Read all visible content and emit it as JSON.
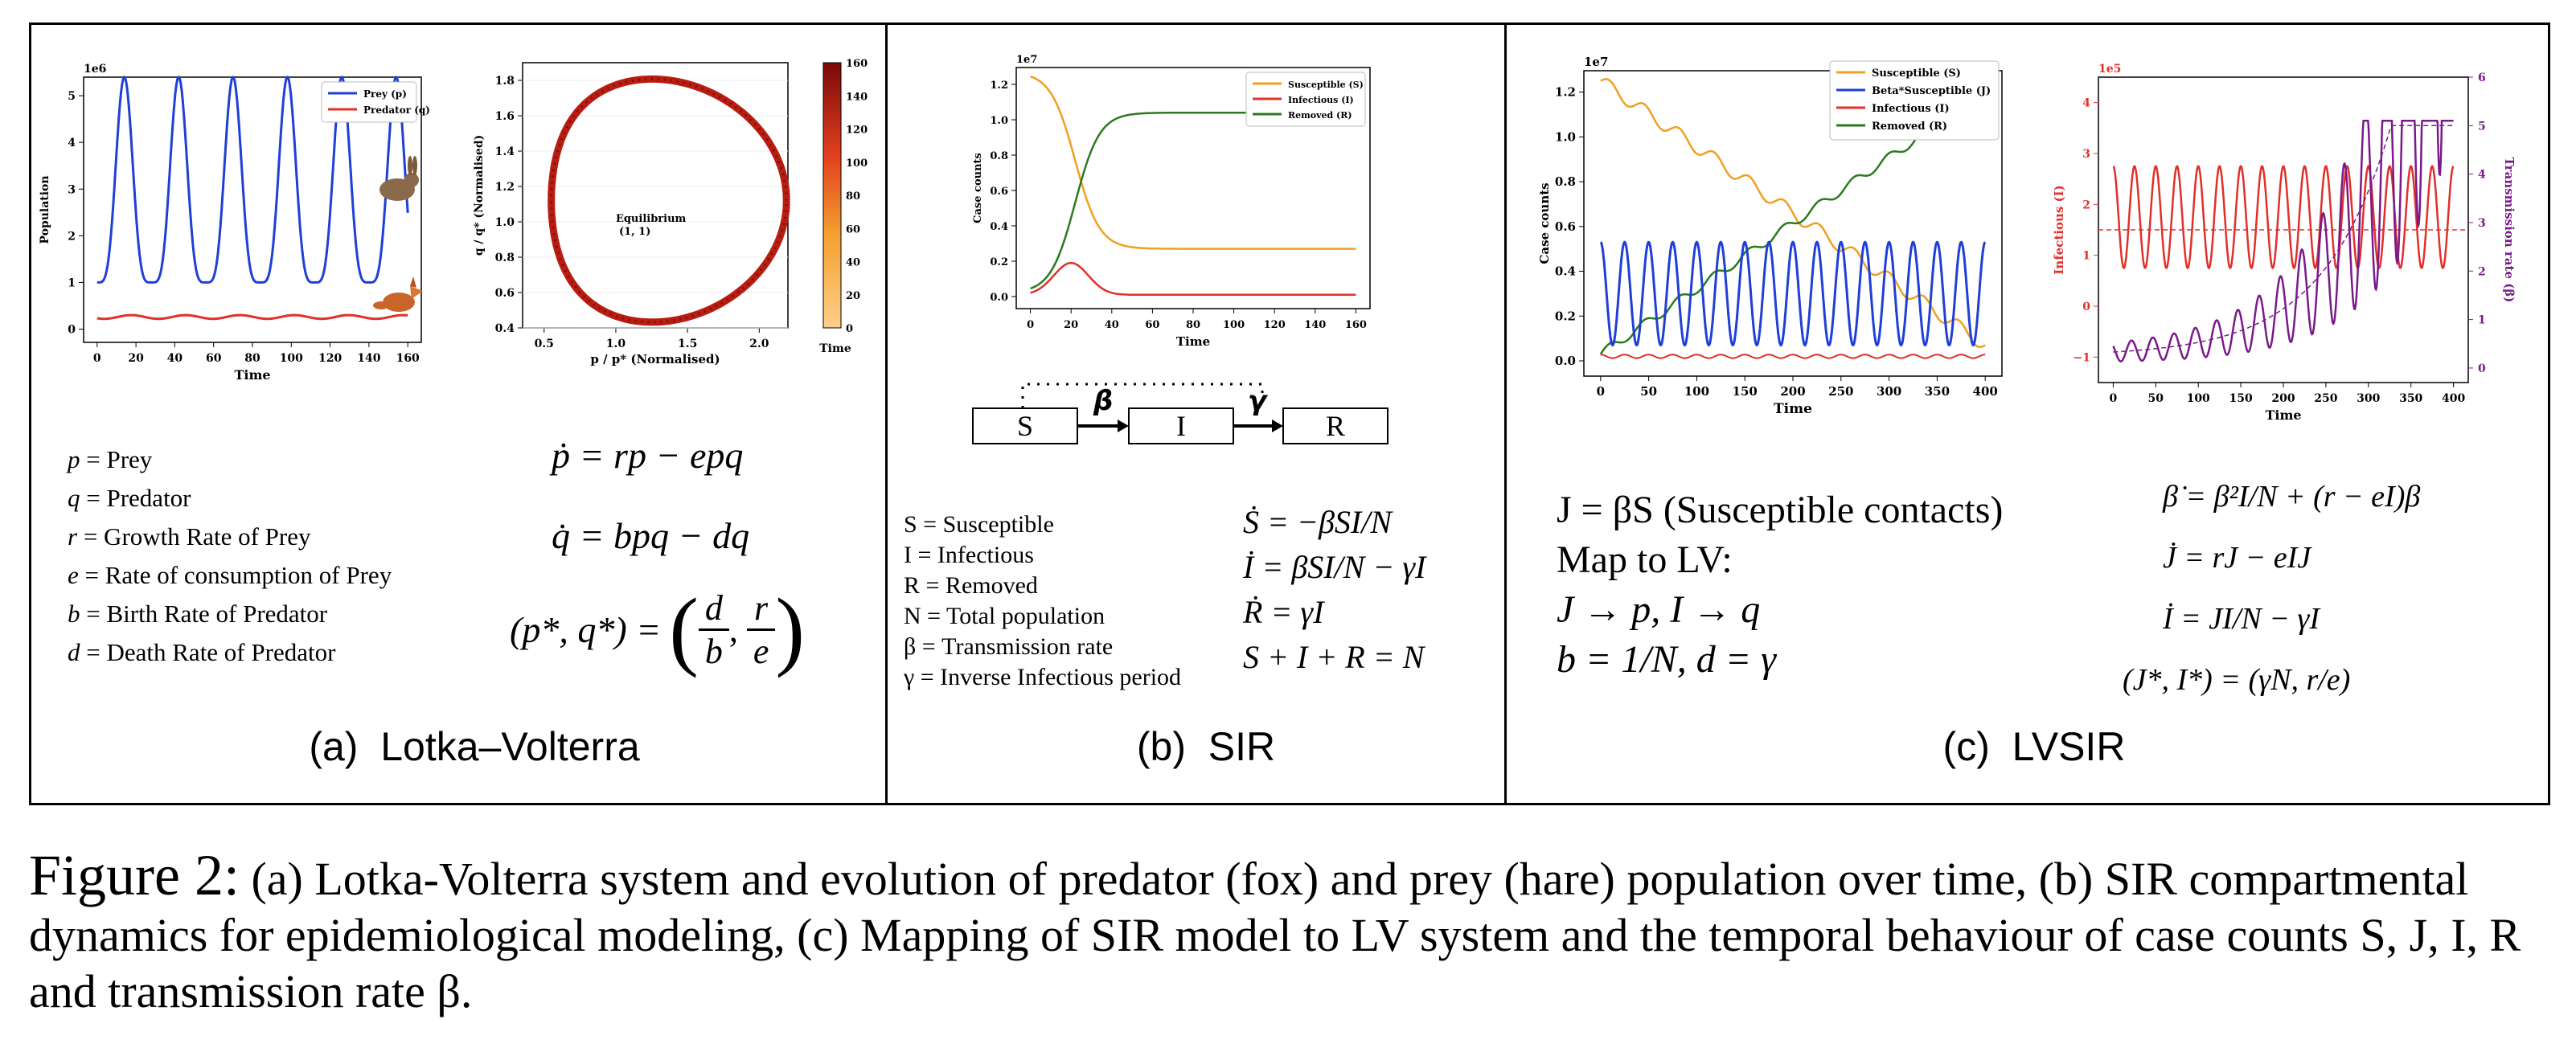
{
  "panels": {
    "a": {
      "label": "(a)  Lotka–Volterra",
      "plot1": {
        "scale": "1e6",
        "xlabel": "Time",
        "ylabel": "Population",
        "xticks": [
          "0",
          "20",
          "40",
          "60",
          "80",
          "100",
          "120",
          "140",
          "160"
        ],
        "yticks": [
          "0",
          "1",
          "2",
          "3",
          "4",
          "5"
        ],
        "legend": [
          "Prey (p)",
          "Predator (q)"
        ],
        "colors": {
          "prey": "#1f3fd6",
          "predator": "#e0302a"
        }
      },
      "plot2": {
        "xlabel": "p / p* (Normalised)",
        "ylabel": "q / q* (Normalised)",
        "xticks": [
          "0.5",
          "1.0",
          "1.5",
          "2.0"
        ],
        "yticks": [
          "0.4",
          "0.6",
          "0.8",
          "1.0",
          "1.2",
          "1.4",
          "1.6",
          "1.8"
        ],
        "annotation": [
          "Equilibrium",
          "(1, 1)"
        ],
        "colorbar_label": "Time",
        "colorbar_ticks": [
          "0",
          "20",
          "40",
          "60",
          "80",
          "100",
          "120",
          "140",
          "160"
        ]
      },
      "defs": [
        {
          "sym": "p",
          "text": " = Prey"
        },
        {
          "sym": "q",
          "text": " = Predator"
        },
        {
          "sym": "r",
          "text": " = Growth Rate of Prey"
        },
        {
          "sym": "e",
          "text": " = Rate of consumption of Prey"
        },
        {
          "sym": "b",
          "text": " = Birth Rate of Predator"
        },
        {
          "sym": "d",
          "text": " = Death Rate of Predator"
        }
      ],
      "eqs": [
        "ṗ = rp − epq",
        "q̇ = bpq − dq"
      ],
      "eq_fixed_left": "(p*, q*) =",
      "eq_fixed_frac1": [
        "d",
        "b"
      ],
      "eq_fixed_frac2": [
        "r",
        "e"
      ]
    },
    "b": {
      "label": "(b)  SIR",
      "plot": {
        "scale": "1e7",
        "xlabel": "Time",
        "ylabel": "Case counts",
        "xticks": [
          "0",
          "20",
          "40",
          "60",
          "80",
          "100",
          "120",
          "140",
          "160"
        ],
        "yticks": [
          "0.0",
          "0.2",
          "0.4",
          "0.6",
          "0.8",
          "1.0",
          "1.2"
        ],
        "legend": [
          "Susceptible (S)",
          "Infectious (I)",
          "Removed (R)"
        ],
        "colors": {
          "S": "#f0a020",
          "I": "#e0302a",
          "R": "#2b7a1e"
        }
      },
      "diagram": {
        "S": "S",
        "I": "I",
        "R": "R",
        "beta": "β",
        "gamma": "γ"
      },
      "defs": [
        "S = Susceptible",
        "I = Infectious",
        "R = Removed",
        "N = Total population",
        "β = Transmission rate",
        "γ = Inverse Infectious period"
      ],
      "eqs": [
        "Ṡ = −βSI/N",
        "İ = βSI/N − γI",
        "Ṙ = γI",
        "S + I + R = N"
      ]
    },
    "c": {
      "label": "(c)  LVSIR",
      "plot1": {
        "scale": "1e7",
        "xlabel": "Time",
        "ylabel": "Case counts",
        "xticks": [
          "0",
          "50",
          "100",
          "150",
          "200",
          "250",
          "300",
          "350",
          "400"
        ],
        "yticks": [
          "0.0",
          "0.2",
          "0.4",
          "0.6",
          "0.8",
          "1.0",
          "1.2"
        ],
        "legend": [
          "Susceptible (S)",
          "Beta*Susceptible (J)",
          "Infectious (I)",
          "Removed (R)"
        ],
        "colors": {
          "S": "#f0a020",
          "J": "#1f3fd6",
          "I": "#e0302a",
          "R": "#2b7a1e"
        }
      },
      "plot2": {
        "scale": "1e5",
        "xlabel": "Time",
        "ylabel_left": "Infectious (I)",
        "ylabel_right": "Transmission rate (β)",
        "xticks": [
          "0",
          "50",
          "100",
          "150",
          "200",
          "250",
          "300",
          "350",
          "400"
        ],
        "yticks_left": [
          "−1",
          "0",
          "1",
          "2",
          "3",
          "4"
        ],
        "yticks_right": [
          "0",
          "1",
          "2",
          "3",
          "4",
          "5",
          "6"
        ],
        "colors": {
          "I": "#e0302a",
          "beta": "#7a1a8a"
        }
      },
      "text": [
        "J = βS (Susceptible contacts)",
        "Map to LV:",
        "J → p, I → q",
        "b = 1/N, d = γ"
      ],
      "eqs": [
        "β̇ = β²I/N + (r − eI)β",
        "J̇ = rJ − eIJ",
        "İ = JI/N − γI",
        "(J*, I*) = (γN, r/e)"
      ]
    }
  },
  "caption": {
    "label": "Figure 2:",
    "text": " (a) Lotka-Volterra system and evolution of predator (fox) and prey (hare) population over time, (b) SIR compartmental dynamics for epidemiological modeling, (c) Mapping of SIR model to LV system and the temporal behaviour of case counts S, J, I, R and transmission rate β."
  }
}
